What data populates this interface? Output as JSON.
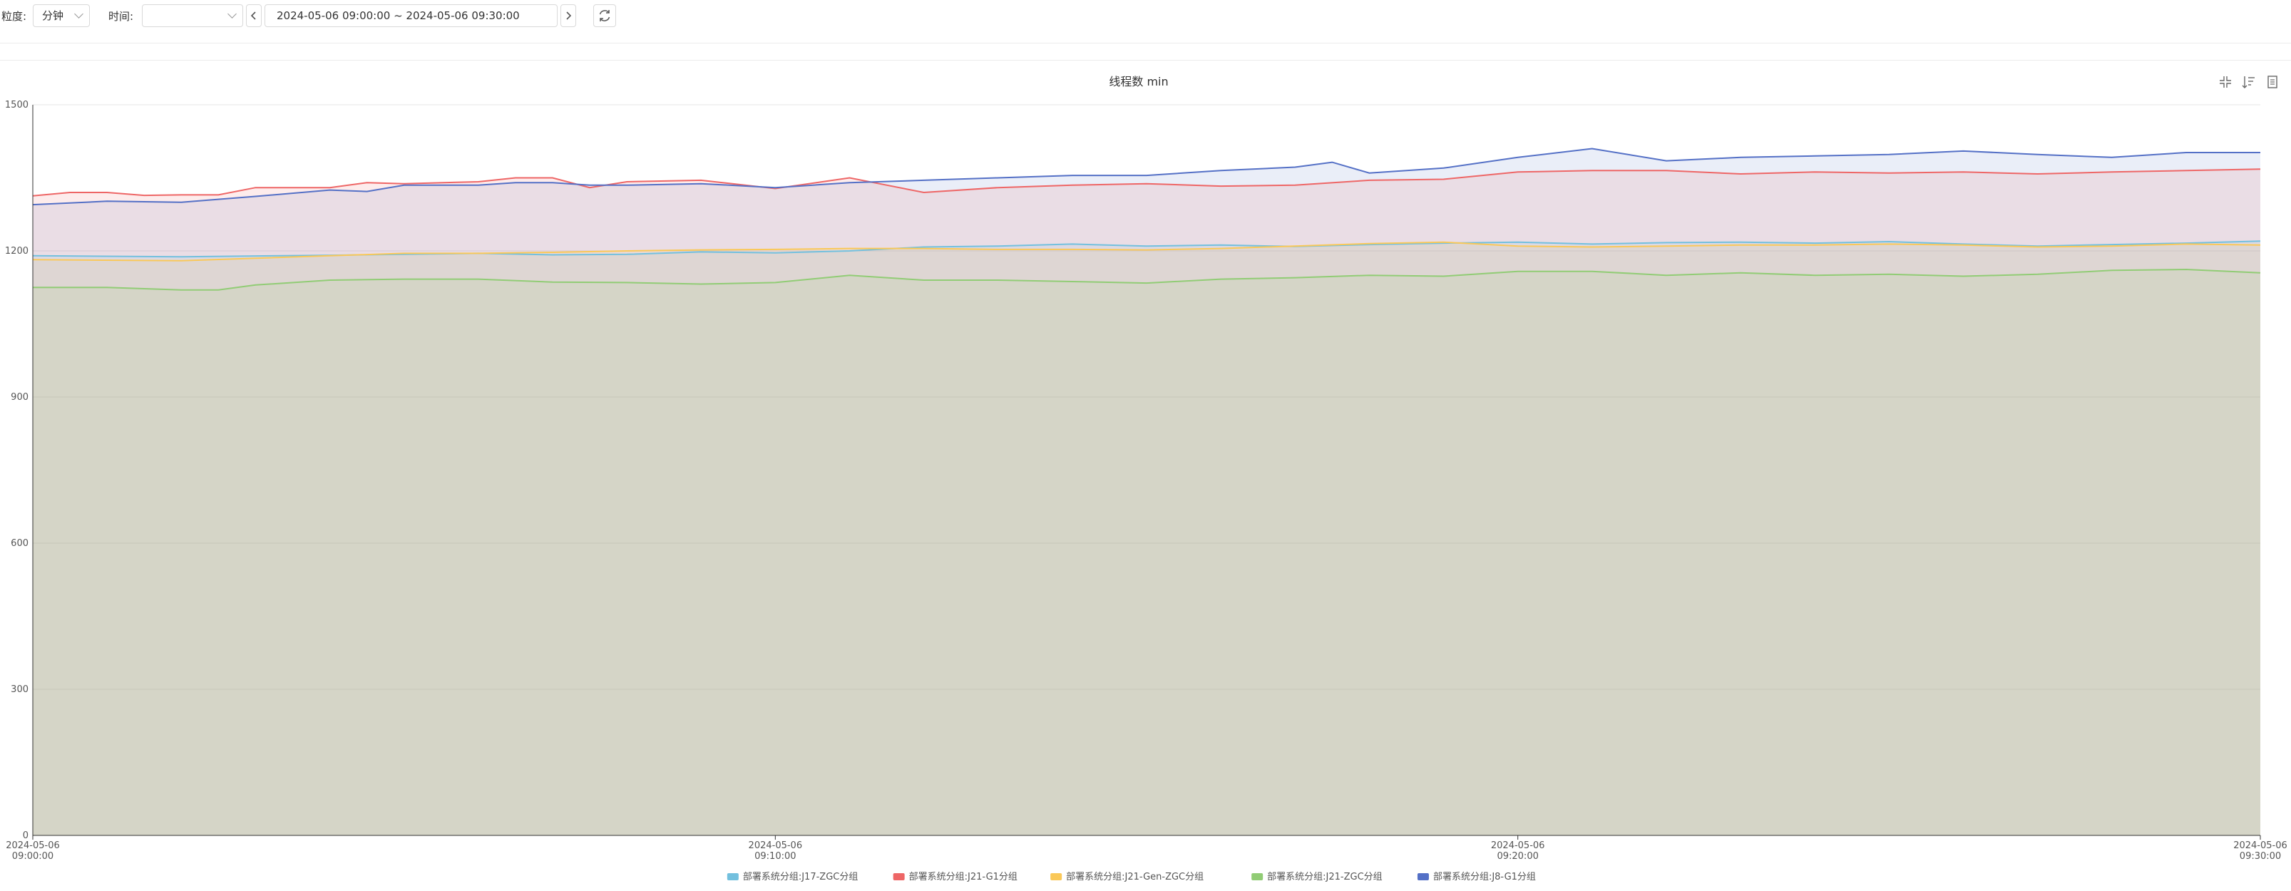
{
  "toolbar": {
    "granularity_label": "粒度:",
    "granularity_value": "分钟",
    "time_label": "时间:",
    "time_value": "",
    "range_value": "2024-05-06 09:00:00 ~ 2024-05-06 09:30:00"
  },
  "colors": {
    "J17-ZGC": "#73c0de",
    "J21-G1": "#ee6666",
    "J21-Gen-ZGC": "#fac858",
    "J21-ZGC": "#91cc75",
    "J8-G1": "#5470c6"
  },
  "icons": [
    "prev-icon",
    "next-icon",
    "refresh-icon",
    "restore-icon",
    "sort-icon",
    "data-view-icon"
  ],
  "chart_data": {
    "type": "area",
    "title": "线程数 min",
    "xlabel": "",
    "ylabel": "",
    "ylim": [
      0,
      1500
    ],
    "y_ticks": [
      "0",
      "300",
      "600",
      "900",
      "1200",
      "1500"
    ],
    "x_tick_labels": [
      [
        "2024-05-06",
        "09:00:00"
      ],
      [
        "2024-05-06",
        "09:10:00"
      ],
      [
        "2024-05-06",
        "09:20:00"
      ],
      [
        "2024-05-06",
        "09:30:00"
      ]
    ],
    "x_range_minutes": [
      0,
      30
    ],
    "legend_position": "bottom-center",
    "grid": true,
    "series": [
      {
        "name": "部署系统分组:J17-ZGC分组",
        "color_key": "J17-ZGC",
        "points": [
          [
            0,
            1190
          ],
          [
            2,
            1188
          ],
          [
            4,
            1191
          ],
          [
            5,
            1193
          ],
          [
            6,
            1195
          ],
          [
            7,
            1192
          ],
          [
            8,
            1193
          ],
          [
            9,
            1198
          ],
          [
            10,
            1196
          ],
          [
            11,
            1200
          ],
          [
            12,
            1208
          ],
          [
            13,
            1210
          ],
          [
            14,
            1214
          ],
          [
            15,
            1210
          ],
          [
            16,
            1212
          ],
          [
            17,
            1209
          ],
          [
            18,
            1213
          ],
          [
            19,
            1216
          ],
          [
            20,
            1218
          ],
          [
            21,
            1214
          ],
          [
            22,
            1217
          ],
          [
            23,
            1218
          ],
          [
            24,
            1216
          ],
          [
            25,
            1219
          ],
          [
            26,
            1214
          ],
          [
            27,
            1210
          ],
          [
            28,
            1213
          ],
          [
            29,
            1216
          ],
          [
            30,
            1220
          ]
        ]
      },
      {
        "name": "部署系统分组:J21-G1分组",
        "color_key": "J21-G1",
        "points": [
          [
            0,
            1313
          ],
          [
            0.5,
            1320
          ],
          [
            1,
            1320
          ],
          [
            1.5,
            1314
          ],
          [
            2,
            1315
          ],
          [
            2.5,
            1315
          ],
          [
            3,
            1330
          ],
          [
            4,
            1330
          ],
          [
            4.5,
            1340
          ],
          [
            5,
            1338
          ],
          [
            6,
            1342
          ],
          [
            6.5,
            1350
          ],
          [
            7,
            1350
          ],
          [
            7.5,
            1330
          ],
          [
            8,
            1342
          ],
          [
            9,
            1345
          ],
          [
            10,
            1328
          ],
          [
            11,
            1350
          ],
          [
            12,
            1320
          ],
          [
            13,
            1330
          ],
          [
            14,
            1335
          ],
          [
            15,
            1338
          ],
          [
            16,
            1333
          ],
          [
            17,
            1335
          ],
          [
            18,
            1345
          ],
          [
            19,
            1347
          ],
          [
            20,
            1362
          ],
          [
            21,
            1365
          ],
          [
            22,
            1365
          ],
          [
            23,
            1358
          ],
          [
            24,
            1362
          ],
          [
            25,
            1360
          ],
          [
            26,
            1362
          ],
          [
            27,
            1358
          ],
          [
            28,
            1362
          ],
          [
            29,
            1365
          ],
          [
            30,
            1368
          ]
        ]
      },
      {
        "name": "部署系统分组:J21-Gen-ZGC分组",
        "color_key": "J21-Gen-ZGC",
        "points": [
          [
            0,
            1182
          ],
          [
            2,
            1180
          ],
          [
            4,
            1190
          ],
          [
            5,
            1195
          ],
          [
            6,
            1195
          ],
          [
            7,
            1197
          ],
          [
            8,
            1200
          ],
          [
            9,
            1202
          ],
          [
            10,
            1203
          ],
          [
            11,
            1205
          ],
          [
            12,
            1205
          ],
          [
            13,
            1203
          ],
          [
            14,
            1203
          ],
          [
            15,
            1202
          ],
          [
            16,
            1205
          ],
          [
            17,
            1210
          ],
          [
            18,
            1215
          ],
          [
            19,
            1218
          ],
          [
            20,
            1210
          ],
          [
            21,
            1208
          ],
          [
            22,
            1210
          ],
          [
            23,
            1212
          ],
          [
            24,
            1212
          ],
          [
            25,
            1214
          ],
          [
            26,
            1212
          ],
          [
            27,
            1208
          ],
          [
            28,
            1210
          ],
          [
            29,
            1214
          ],
          [
            30,
            1212
          ]
        ]
      },
      {
        "name": "部署系统分组:J21-ZGC分组",
        "color_key": "J21-ZGC",
        "points": [
          [
            0,
            1125
          ],
          [
            1,
            1125
          ],
          [
            2,
            1120
          ],
          [
            2.5,
            1120
          ],
          [
            3,
            1130
          ],
          [
            4,
            1140
          ],
          [
            5,
            1142
          ],
          [
            6,
            1142
          ],
          [
            7,
            1136
          ],
          [
            8,
            1135
          ],
          [
            9,
            1132
          ],
          [
            10,
            1135
          ],
          [
            11,
            1150
          ],
          [
            12,
            1140
          ],
          [
            13,
            1140
          ],
          [
            14,
            1137
          ],
          [
            15,
            1134
          ],
          [
            16,
            1142
          ],
          [
            17,
            1145
          ],
          [
            18,
            1150
          ],
          [
            19,
            1148
          ],
          [
            20,
            1158
          ],
          [
            21,
            1158
          ],
          [
            22,
            1150
          ],
          [
            23,
            1155
          ],
          [
            24,
            1150
          ],
          [
            25,
            1152
          ],
          [
            26,
            1148
          ],
          [
            27,
            1152
          ],
          [
            28,
            1160
          ],
          [
            29,
            1162
          ],
          [
            30,
            1155
          ]
        ]
      },
      {
        "name": "部署系统分组:J8-G1分组",
        "color_key": "J8-G1",
        "points": [
          [
            0,
            1295
          ],
          [
            1,
            1302
          ],
          [
            2,
            1300
          ],
          [
            2.5,
            1306
          ],
          [
            3,
            1312
          ],
          [
            4,
            1325
          ],
          [
            4.5,
            1322
          ],
          [
            5,
            1335
          ],
          [
            6,
            1335
          ],
          [
            6.5,
            1340
          ],
          [
            7,
            1340
          ],
          [
            7.5,
            1335
          ],
          [
            8,
            1335
          ],
          [
            9,
            1338
          ],
          [
            10,
            1330
          ],
          [
            11,
            1340
          ],
          [
            12,
            1345
          ],
          [
            13,
            1350
          ],
          [
            14,
            1355
          ],
          [
            15,
            1355
          ],
          [
            16,
            1365
          ],
          [
            17,
            1372
          ],
          [
            17.5,
            1382
          ],
          [
            18,
            1360
          ],
          [
            19,
            1370
          ],
          [
            20,
            1392
          ],
          [
            21,
            1410
          ],
          [
            22,
            1385
          ],
          [
            23,
            1392
          ],
          [
            24,
            1395
          ],
          [
            25,
            1398
          ],
          [
            26,
            1405
          ],
          [
            27,
            1398
          ],
          [
            28,
            1392
          ],
          [
            29,
            1402
          ],
          [
            30,
            1402
          ]
        ]
      }
    ]
  }
}
